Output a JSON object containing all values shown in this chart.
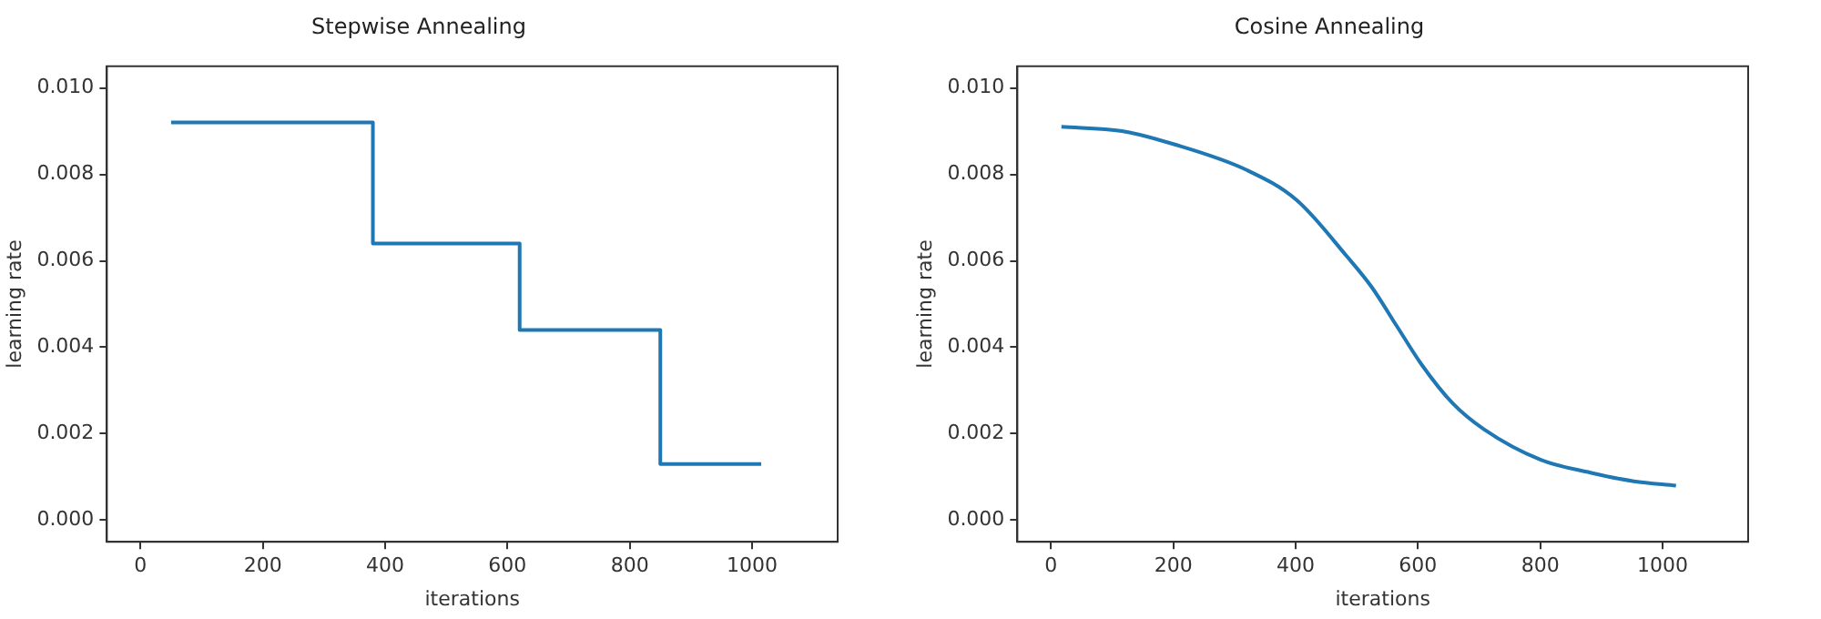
{
  "chart_data": [
    {
      "type": "step",
      "title": "Stepwise Annealing",
      "xlabel": "iterations",
      "ylabel": "learning rate",
      "x": [
        50,
        380,
        620,
        850,
        1015
      ],
      "series": [
        {
          "color": "#1f77b4",
          "values": [
            0.0092,
            0.0064,
            0.0044,
            0.0013,
            0.0013
          ]
        }
      ],
      "xlim": [
        -55,
        1140
      ],
      "xticks": [
        0,
        200,
        400,
        600,
        800,
        1000
      ],
      "ylim": [
        -0.0005,
        0.0105
      ],
      "yticks": [
        {
          "value": 0,
          "label": "0.000"
        },
        {
          "value": 0.002,
          "label": "0.002"
        },
        {
          "value": 0.004,
          "label": "0.004"
        },
        {
          "value": 0.006,
          "label": "0.006"
        },
        {
          "value": 0.008,
          "label": "0.008"
        },
        {
          "value": 0.01,
          "label": "0.010"
        }
      ],
      "grid": false,
      "legend": false
    },
    {
      "type": "line",
      "title": "Cosine Annealing",
      "xlabel": "iterations",
      "ylabel": "learning rate",
      "x": [
        17,
        116,
        200,
        320,
        402,
        484,
        524,
        565,
        606,
        657,
        708,
        800,
        882,
        953,
        1022
      ],
      "series": [
        {
          "color": "#1f77b4",
          "values": [
            0.0091,
            0.009,
            0.0087,
            0.0081,
            0.0074,
            0.0061,
            0.0054,
            0.0045,
            0.0036,
            0.0027,
            0.0021,
            0.0014,
            0.0011,
            0.0009,
            0.0008
          ]
        }
      ],
      "xlim": [
        -55,
        1140
      ],
      "xticks": [
        0,
        200,
        400,
        600,
        800,
        1000
      ],
      "ylim": [
        -0.0005,
        0.0105
      ],
      "yticks": [
        {
          "value": 0,
          "label": "0.000"
        },
        {
          "value": 0.002,
          "label": "0.002"
        },
        {
          "value": 0.004,
          "label": "0.004"
        },
        {
          "value": 0.006,
          "label": "0.006"
        },
        {
          "value": 0.008,
          "label": "0.008"
        },
        {
          "value": 0.01,
          "label": "0.010"
        }
      ],
      "grid": false,
      "legend": false
    }
  ]
}
